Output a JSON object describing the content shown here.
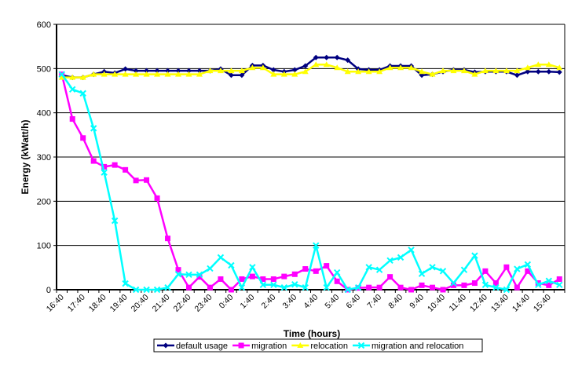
{
  "chart_data": {
    "type": "line",
    "title": "",
    "xlabel": "Time (hours)",
    "ylabel": "Energy (kWatt/h)",
    "ylim": [
      0,
      600
    ],
    "yticks": [
      0,
      100,
      200,
      300,
      400,
      500,
      600
    ],
    "grid": "horizontal",
    "legend_position": "bottom",
    "x": [
      "16:40",
      "17:10",
      "17:40",
      "18:10",
      "18:40",
      "19:10",
      "19:40",
      "20:10",
      "20:40",
      "21:10",
      "21:40",
      "22:10",
      "22:40",
      "23:10",
      "23:40",
      "0:10",
      "0:40",
      "1:10",
      "1:40",
      "2:10",
      "2:40",
      "3:10",
      "3:40",
      "4:10",
      "4:40",
      "5:10",
      "5:40",
      "6:10",
      "6:40",
      "7:10",
      "7:40",
      "8:10",
      "8:40",
      "9:10",
      "9:40",
      "10:10",
      "10:40",
      "11:10",
      "11:40",
      "12:10",
      "12:40",
      "13:10",
      "13:40",
      "14:10",
      "14:40",
      "15:10",
      "15:40",
      "16:10"
    ],
    "xtick_labels": [
      "16:40",
      "17:40",
      "18:40",
      "19:40",
      "20:40",
      "21:40",
      "22:40",
      "23:40",
      "0:40",
      "1:40",
      "2:40",
      "3:40",
      "4:40",
      "5:40",
      "6:40",
      "7:40",
      "8:40",
      "9:40",
      "10:40",
      "11:40",
      "12:40",
      "13:40",
      "14:40",
      "15:40"
    ],
    "series": [
      {
        "name": "default usage",
        "color": "#000080",
        "marker": "diamond",
        "values": [
          485,
          480,
          480,
          487,
          493,
          490,
          499,
          495,
          495,
          495,
          495,
          495,
          495,
          495,
          495,
          499,
          485,
          485,
          507,
          507,
          497,
          493,
          497,
          506,
          525,
          525,
          525,
          519,
          499,
          497,
          497,
          506,
          506,
          506,
          485,
          487,
          493,
          497,
          497,
          492,
          493,
          493,
          493,
          485,
          493,
          493,
          493,
          492
        ]
      },
      {
        "name": "migration",
        "color": "#FF00FF",
        "marker": "square",
        "values": [
          487,
          386,
          343,
          291,
          278,
          282,
          271,
          247,
          248,
          207,
          116,
          45,
          5,
          29,
          5,
          24,
          0,
          24,
          30,
          24,
          24,
          30,
          35,
          47,
          42,
          54,
          19,
          0,
          4,
          5,
          5,
          29,
          5,
          0,
          10,
          5,
          0,
          10,
          10,
          15,
          42,
          15,
          51,
          5,
          42,
          15,
          10,
          24
        ]
      },
      {
        "name": "relocation",
        "color": "#FFFF00",
        "marker": "triangle",
        "values": [
          480,
          480,
          480,
          487,
          487,
          487,
          487,
          487,
          487,
          487,
          487,
          487,
          487,
          487,
          495,
          495,
          495,
          495,
          502,
          502,
          487,
          487,
          487,
          493,
          509,
          509,
          502,
          493,
          493,
          493,
          493,
          502,
          502,
          502,
          493,
          487,
          495,
          495,
          495,
          487,
          495,
          495,
          495,
          495,
          502,
          509,
          509,
          502
        ]
      },
      {
        "name": "migration and relocation",
        "color": "#00FFFF",
        "marker": "x",
        "values": [
          487,
          453,
          444,
          365,
          265,
          156,
          14,
          0,
          0,
          0,
          5,
          35,
          34,
          34,
          48,
          73,
          55,
          5,
          51,
          11,
          11,
          5,
          12,
          5,
          100,
          5,
          39,
          0,
          5,
          51,
          45,
          66,
          73,
          90,
          36,
          51,
          42,
          15,
          45,
          77,
          11,
          5,
          0,
          47,
          57,
          11,
          20,
          11
        ]
      }
    ]
  }
}
